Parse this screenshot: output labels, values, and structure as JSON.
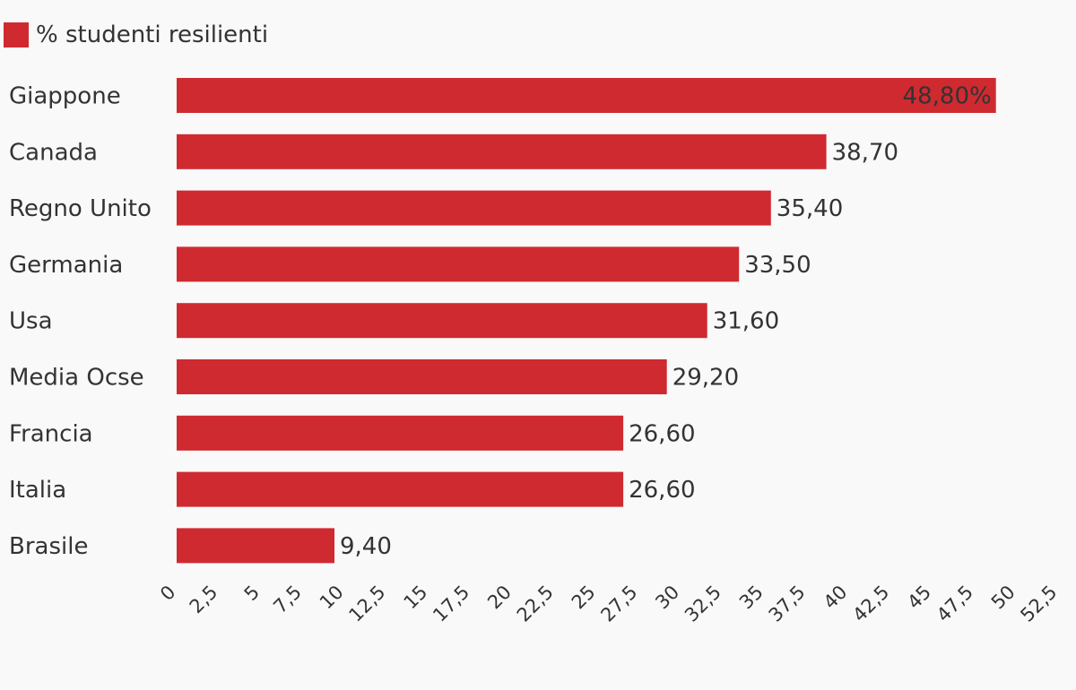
{
  "legend": {
    "label": "% studenti resilienti",
    "color": "#cf2a30"
  },
  "chart_data": {
    "type": "bar",
    "orientation": "horizontal",
    "categories": [
      "Giappone",
      "Canada",
      "Regno Unito",
      "Germania",
      "Usa",
      "Media Ocse",
      "Francia",
      "Italia",
      "Brasile"
    ],
    "series": [
      {
        "name": "% studenti resilienti",
        "values": [
          48.8,
          38.7,
          35.4,
          33.5,
          31.6,
          29.2,
          26.6,
          26.6,
          9.4
        ],
        "color": "#cf2a30"
      }
    ],
    "value_labels": [
      "48,80%",
      "38,70",
      "35,40",
      "33,50",
      "31,60",
      "29,20",
      "26,60",
      "26,60",
      "9,40"
    ],
    "x_ticks": [
      "0",
      "2,5",
      "5",
      "7,5",
      "10",
      "12,5",
      "15",
      "17,5",
      "20",
      "22,5",
      "25",
      "27,5",
      "30",
      "32,5",
      "35",
      "37,5",
      "40",
      "42,5",
      "45",
      "47,5",
      "50",
      "52,5"
    ],
    "xlim": [
      0,
      52.5
    ],
    "grid": false,
    "legend_position": "top-left"
  }
}
